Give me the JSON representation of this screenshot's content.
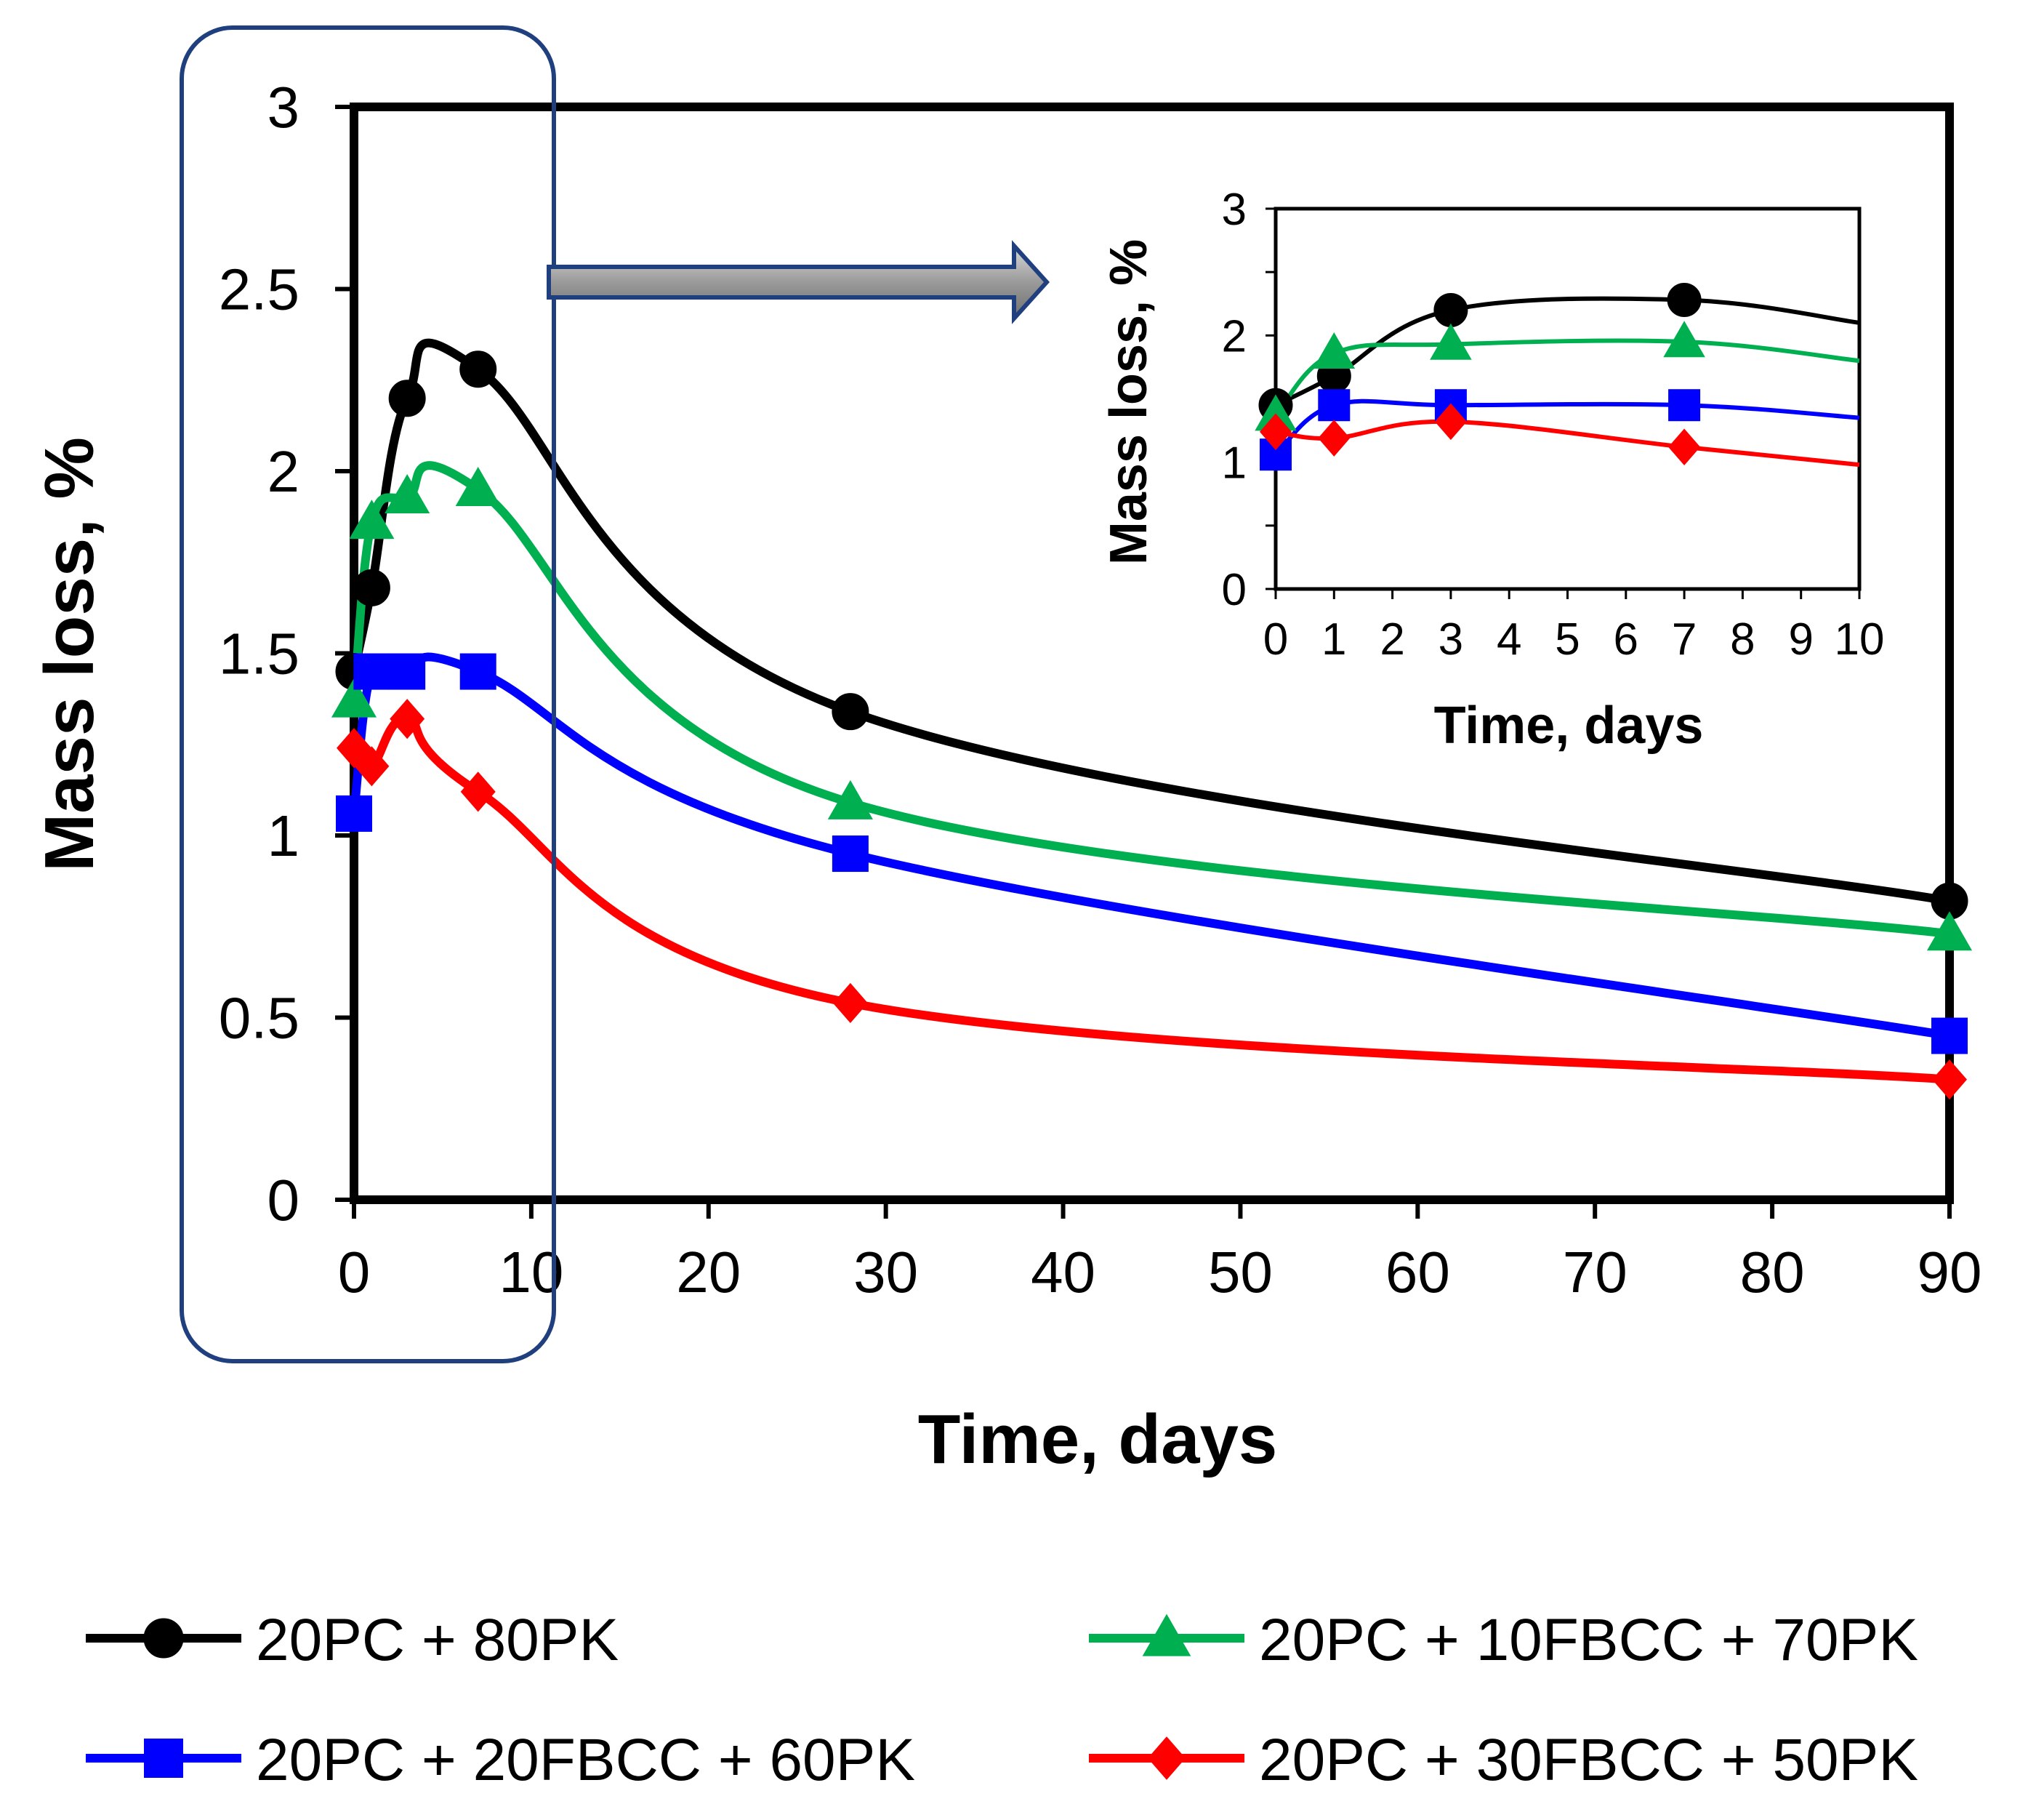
{
  "chart_data": [
    {
      "type": "line",
      "role": "main",
      "title": "",
      "xlabel": "Time, days",
      "ylabel": "Mass loss, %",
      "xlim": [
        0,
        90
      ],
      "ylim": [
        0,
        3
      ],
      "x_ticks": [
        "0",
        "10",
        "20",
        "30",
        "40",
        "50",
        "60",
        "70",
        "80",
        "90"
      ],
      "y_ticks": [
        "0",
        "0.5",
        "1",
        "1.5",
        "2",
        "2.5",
        "3"
      ],
      "grid": false,
      "legend_position": "bottom",
      "series": [
        {
          "name": "20PC + 80PK",
          "color": "#000000",
          "marker": "circle",
          "x": [
            0,
            1,
            3,
            7,
            28,
            90
          ],
          "y": [
            1.45,
            1.68,
            2.2,
            2.28,
            1.34,
            0.82
          ]
        },
        {
          "name": "20PC + 10FBCC + 70PK",
          "color": "#00b050",
          "marker": "triangle",
          "x": [
            0,
            1,
            3,
            7,
            28,
            90
          ],
          "y": [
            1.37,
            1.86,
            1.93,
            1.95,
            1.09,
            0.73
          ]
        },
        {
          "name": "20PC + 20FBCC + 60PK",
          "color": "#0000ff",
          "marker": "square",
          "x": [
            0,
            1,
            3,
            7,
            28,
            90
          ],
          "y": [
            1.06,
            1.45,
            1.45,
            1.45,
            0.95,
            0.45
          ]
        },
        {
          "name": "20PC + 30FBCC + 50PK",
          "color": "#ff0000",
          "marker": "diamond",
          "x": [
            0,
            1,
            3,
            7,
            28,
            90
          ],
          "y": [
            1.24,
            1.19,
            1.32,
            1.12,
            0.54,
            0.33
          ]
        }
      ]
    },
    {
      "type": "line",
      "role": "inset",
      "title": "",
      "xlabel": "Time, days",
      "ylabel": "Mass loss, %",
      "xlim": [
        0,
        10
      ],
      "ylim": [
        0,
        3
      ],
      "x_ticks": [
        "0",
        "1",
        "2",
        "3",
        "4",
        "5",
        "6",
        "7",
        "8",
        "9",
        "10"
      ],
      "y_ticks": [
        "0",
        "1",
        "2",
        "3"
      ],
      "grid": false,
      "series": [
        {
          "name": "20PC + 80PK",
          "x": [
            0,
            1,
            3,
            7
          ],
          "y": [
            1.45,
            1.68,
            2.2,
            2.28
          ],
          "end_y": 2.1
        },
        {
          "name": "20PC + 10FBCC + 70PK",
          "x": [
            0,
            1,
            3,
            7
          ],
          "y": [
            1.37,
            1.86,
            1.93,
            1.95
          ],
          "end_y": 1.8
        },
        {
          "name": "20PC + 20FBCC + 60PK",
          "x": [
            0,
            1,
            3,
            7
          ],
          "y": [
            1.06,
            1.45,
            1.45,
            1.45
          ],
          "end_y": 1.35
        },
        {
          "name": "20PC + 30FBCC + 50PK",
          "x": [
            0,
            1,
            3,
            7
          ],
          "y": [
            1.24,
            1.19,
            1.32,
            1.12
          ],
          "end_y": 0.98
        }
      ]
    }
  ]
}
